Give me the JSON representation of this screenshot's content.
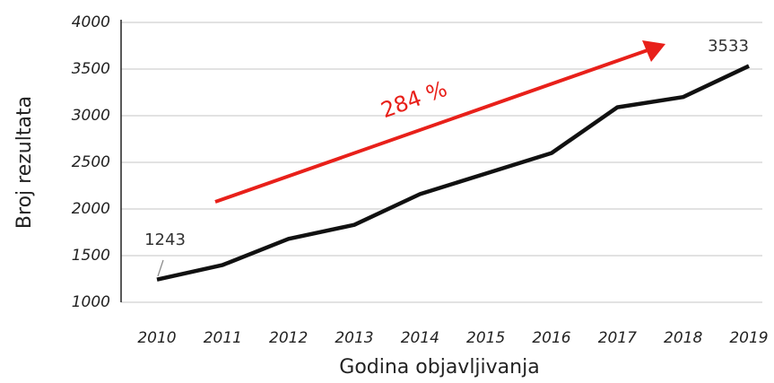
{
  "chart_data": {
    "type": "line",
    "x_label": "Godina objavljivanja",
    "y_label": "Broj rezultata",
    "categories": [
      "2010",
      "2011",
      "2012",
      "2013",
      "2014",
      "2015",
      "2016",
      "2017",
      "2018",
      "2019"
    ],
    "values": [
      1243,
      1400,
      1680,
      1830,
      2160,
      2380,
      2600,
      3090,
      3200,
      3533
    ],
    "color": "#111111",
    "ylim": [
      1000,
      4000
    ],
    "yticks": [
      1000,
      1500,
      2000,
      2500,
      3000,
      3500,
      4000
    ],
    "grid": true,
    "annotations": [
      "1243",
      "3533",
      "284 %"
    ]
  }
}
